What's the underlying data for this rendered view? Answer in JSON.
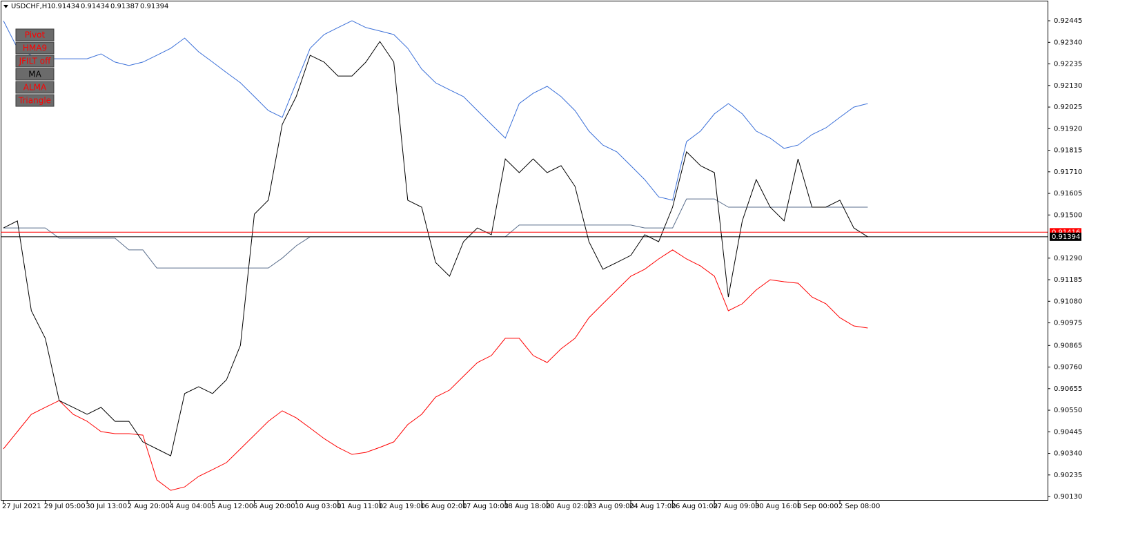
{
  "header": {
    "symbol": "USDCHF,H1",
    "ohlc": [
      0.91434,
      0.91434,
      0.91387,
      0.91394
    ]
  },
  "buttons": [
    {
      "label": "Pivot",
      "color": "#ff0000"
    },
    {
      "label": "HMA9",
      "color": "#ff0000"
    },
    {
      "label": "JFILT off",
      "color": "#ff0000"
    },
    {
      "label": "MA",
      "color": "#000000"
    },
    {
      "label": "ALMA",
      "color": "#ff0000"
    },
    {
      "label": "Triangle",
      "color": "#ff0000"
    }
  ],
  "chart_data": {
    "type": "line",
    "categories": [
      "27 Jul 2021",
      null,
      null,
      "29 Jul 05:00",
      null,
      null,
      "30 Jul 13:00",
      null,
      null,
      "2 Aug 20:00",
      null,
      null,
      "4 Aug 04:00",
      null,
      null,
      "5 Aug 12:00",
      null,
      null,
      "6 Aug 20:00",
      null,
      null,
      "10 Aug 03:00",
      null,
      null,
      "11 Aug 11:00",
      null,
      null,
      "12 Aug 19:00",
      null,
      null,
      "16 Aug 02:00",
      null,
      null,
      "17 Aug 10:00",
      null,
      null,
      "18 Aug 18:00",
      null,
      null,
      "20 Aug 02:00",
      null,
      null,
      "23 Aug 09:00",
      null,
      null,
      "24 Aug 17:00",
      null,
      null,
      "26 Aug 01:00",
      null,
      null,
      "27 Aug 09:00",
      null,
      null,
      "30 Aug 16:00",
      null,
      null,
      "1 Sep 00:00",
      null,
      null,
      "2 Sep 08:00",
      null,
      null
    ],
    "series": [
      {
        "color": "#3a6fd8",
        "values": [
          0.92445,
          0.92311,
          0.92277,
          0.9226,
          0.9226,
          0.9226,
          0.9226,
          0.92284,
          0.92244,
          0.92227,
          0.92244,
          0.92277,
          0.92311,
          0.92361,
          0.92294,
          0.92244,
          0.92193,
          0.92143,
          0.92076,
          0.92008,
          0.91975,
          0.92143,
          0.92311,
          0.92378,
          0.92412,
          0.92445,
          0.92412,
          0.92395,
          0.92378,
          0.92311,
          0.9221,
          0.92143,
          0.92109,
          0.92076,
          0.92008,
          0.91941,
          0.91874,
          0.92042,
          0.92092,
          0.92126,
          0.92076,
          0.92008,
          0.91908,
          0.9184,
          0.91807,
          0.9174,
          0.91672,
          0.91588,
          0.91572,
          0.91857,
          0.91908,
          0.91992,
          0.92042,
          0.91992,
          0.91908,
          0.91874,
          0.91824,
          0.9184,
          0.91891,
          0.91924,
          0.91975,
          0.92025,
          0.92042
        ]
      },
      {
        "color": "#ff0000",
        "values": [
          0.90362,
          0.90446,
          0.9053,
          0.90564,
          0.90597,
          0.9053,
          0.90496,
          0.90446,
          0.90436,
          0.90436,
          0.90429,
          0.90211,
          0.9016,
          0.90177,
          0.90228,
          0.90261,
          0.90295,
          0.90362,
          0.90429,
          0.90496,
          0.90547,
          0.90513,
          0.90463,
          0.90412,
          0.90369,
          0.90335,
          0.90345,
          0.90369,
          0.90396,
          0.9048,
          0.9053,
          0.90614,
          0.90648,
          0.90715,
          0.90782,
          0.90816,
          0.909,
          0.909,
          0.90816,
          0.90782,
          0.90849,
          0.909,
          0.91,
          0.91068,
          0.91135,
          0.91202,
          0.91236,
          0.91286,
          0.9133,
          0.91286,
          0.91252,
          0.91202,
          0.91034,
          0.91068,
          0.91135,
          0.91185,
          0.91175,
          0.91168,
          0.91101,
          0.91068,
          0.91,
          0.9096,
          0.9095
        ]
      },
      {
        "color": "#5a6e8c",
        "values": [
          0.91437,
          0.91437,
          0.91437,
          0.91437,
          0.91387,
          0.91387,
          0.91387,
          0.91387,
          0.91387,
          0.9133,
          0.9133,
          0.91242,
          0.91242,
          0.91242,
          0.91242,
          0.91242,
          0.91242,
          0.91242,
          0.91242,
          0.91242,
          0.9129,
          0.9135,
          0.91394,
          0.91394,
          0.91394,
          0.91394,
          0.91394,
          0.91394,
          0.91394,
          0.91394,
          0.91394,
          0.91394,
          0.91394,
          0.91394,
          0.91394,
          0.91394,
          0.91394,
          0.91451,
          0.91451,
          0.91451,
          0.91451,
          0.91451,
          0.91451,
          0.91451,
          0.91451,
          0.91451,
          0.91437,
          0.91437,
          0.91437,
          0.91578,
          0.91578,
          0.91578,
          0.91538,
          0.91538,
          0.91538,
          0.91538,
          0.91538,
          0.91538,
          0.91538,
          0.91538,
          0.91538,
          0.91538,
          0.91538
        ]
      },
      {
        "color": "#000000",
        "values": [
          0.91437,
          0.91471,
          0.91034,
          0.909,
          0.90597,
          0.90564,
          0.9053,
          0.90564,
          0.90496,
          0.90496,
          0.90396,
          0.90362,
          0.90328,
          0.90631,
          0.90664,
          0.90631,
          0.90698,
          0.90866,
          0.91504,
          0.91572,
          0.91941,
          0.92076,
          0.92277,
          0.92244,
          0.92176,
          0.92176,
          0.92244,
          0.92344,
          0.92244,
          0.91572,
          0.91538,
          0.91269,
          0.91202,
          0.9137,
          0.91437,
          0.91404,
          0.91773,
          0.91706,
          0.91773,
          0.91706,
          0.9174,
          0.91639,
          0.9137,
          0.91236,
          0.91269,
          0.91303,
          0.91404,
          0.9137,
          0.91538,
          0.91807,
          0.9174,
          0.91706,
          0.91101,
          0.91471,
          0.91672,
          0.91538,
          0.91471,
          0.91773,
          0.91538,
          0.91538,
          0.91572,
          0.91437,
          0.91394
        ]
      }
    ],
    "ylim": [
      0.9011,
      0.92546
    ],
    "yticks": [
      0.92445,
      {
        "value": 0.9234,
        "label": "0.92340"
      },
      0.92235,
      {
        "value": 0.9213,
        "label": "0.92130"
      },
      0.92025,
      {
        "value": 0.9192,
        "label": "0.91920"
      },
      0.91815,
      {
        "value": 0.9171,
        "label": "0.91710"
      },
      0.91605,
      {
        "value": 0.915,
        "label": "0.91500"
      },
      {
        "value": 0.9129,
        "label": "0.91290"
      },
      0.91185,
      {
        "value": 0.9108,
        "label": "0.91080"
      },
      0.90975,
      0.90865,
      {
        "value": 0.9076,
        "label": "0.90760"
      },
      0.90655,
      {
        "value": 0.9055,
        "label": "0.90550"
      },
      0.90445,
      {
        "value": 0.9034,
        "label": "0.90340"
      },
      0.90235,
      {
        "value": 0.9013,
        "label": "0.90130"
      }
    ],
    "price_lines": [
      {
        "value": 0.91416,
        "color": "#ff0000"
      },
      {
        "value": 0.91394,
        "color": "#000000"
      }
    ]
  }
}
